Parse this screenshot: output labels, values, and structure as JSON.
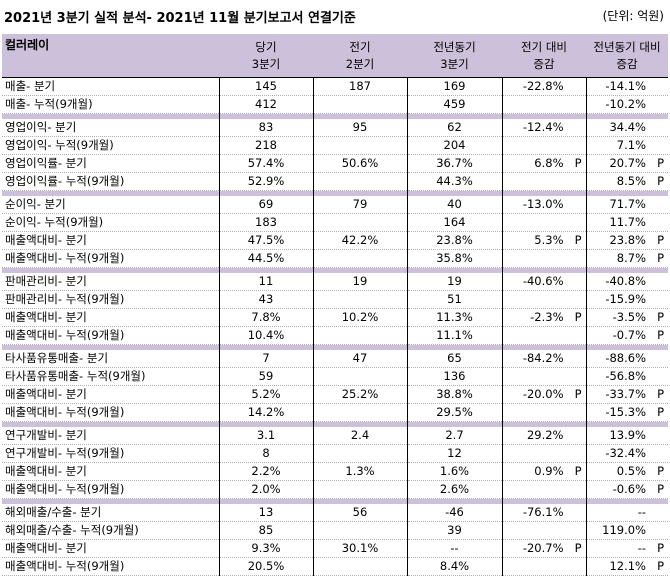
{
  "header": {
    "title": "2021년 3분기 실적 분석- 2021년 11월 분기보고서 연결기준",
    "unit": "(단위: 억원)"
  },
  "columns": [
    {
      "line1": "컬러레이",
      "line2": ""
    },
    {
      "line1": "당기",
      "line2": "3분기"
    },
    {
      "line1": "전기",
      "line2": "2분기"
    },
    {
      "line1": "전년동기",
      "line2": "3분기"
    },
    {
      "line1": "전기 대비",
      "line2": "증감"
    },
    {
      "line1": "전년동기 대비",
      "line2": "증감"
    }
  ],
  "groups": [
    {
      "rows": [
        {
          "label": "매출- 분기",
          "cur": "145",
          "prev": "187",
          "yoy": "169",
          "qchg": "-22.8%",
          "qp": "",
          "ychg": "-14.1%",
          "yp": ""
        },
        {
          "label": "매출- 누적(9개월)",
          "cur": "412",
          "prev": "",
          "yoy": "459",
          "qchg": "",
          "qp": "",
          "ychg": "-10.2%",
          "yp": ""
        }
      ]
    },
    {
      "rows": [
        {
          "label": "영업이익- 분기",
          "cur": "83",
          "prev": "95",
          "yoy": "62",
          "qchg": "-12.4%",
          "qp": "",
          "ychg": "34.4%",
          "yp": ""
        },
        {
          "label": "영업이익- 누적(9개월)",
          "cur": "218",
          "prev": "",
          "yoy": "204",
          "qchg": "",
          "qp": "",
          "ychg": "7.1%",
          "yp": ""
        },
        {
          "label": "영업이익률- 분기",
          "cur": "57.4%",
          "prev": "50.6%",
          "yoy": "36.7%",
          "qchg": "6.8%",
          "qp": "P",
          "ychg": "20.7%",
          "yp": "P"
        },
        {
          "label": "영업이익률- 누적(9개월)",
          "cur": "52.9%",
          "prev": "",
          "yoy": "44.3%",
          "qchg": "",
          "qp": "",
          "ychg": "8.5%",
          "yp": "P"
        }
      ]
    },
    {
      "rows": [
        {
          "label": "순이익- 분기",
          "cur": "69",
          "prev": "79",
          "yoy": "40",
          "qchg": "-13.0%",
          "qp": "",
          "ychg": "71.7%",
          "yp": ""
        },
        {
          "label": "순이익- 누적(9개월)",
          "cur": "183",
          "prev": "",
          "yoy": "164",
          "qchg": "",
          "qp": "",
          "ychg": "11.7%",
          "yp": ""
        },
        {
          "label": "매출액대비- 분기",
          "cur": "47.5%",
          "prev": "42.2%",
          "yoy": "23.8%",
          "qchg": "5.3%",
          "qp": "P",
          "ychg": "23.8%",
          "yp": "P"
        },
        {
          "label": "매출액대비- 누적(9개월)",
          "cur": "44.5%",
          "prev": "",
          "yoy": "35.8%",
          "qchg": "",
          "qp": "",
          "ychg": "8.7%",
          "yp": "P"
        }
      ]
    },
    {
      "rows": [
        {
          "label": "판매관리비- 분기",
          "cur": "11",
          "prev": "19",
          "yoy": "19",
          "qchg": "-40.6%",
          "qp": "",
          "ychg": "-40.8%",
          "yp": ""
        },
        {
          "label": "판매관리비- 누적(9개월)",
          "cur": "43",
          "prev": "",
          "yoy": "51",
          "qchg": "",
          "qp": "",
          "ychg": "-15.9%",
          "yp": ""
        },
        {
          "label": "매출액대비- 분기",
          "cur": "7.8%",
          "prev": "10.2%",
          "yoy": "11.3%",
          "qchg": "-2.3%",
          "qp": "P",
          "ychg": "-3.5%",
          "yp": "P"
        },
        {
          "label": "매출액대비- 누적(9개월)",
          "cur": "10.4%",
          "prev": "",
          "yoy": "11.1%",
          "qchg": "",
          "qp": "",
          "ychg": "-0.7%",
          "yp": "P"
        }
      ]
    },
    {
      "rows": [
        {
          "label": "타사품유통매출- 분기",
          "cur": "7",
          "prev": "47",
          "yoy": "65",
          "qchg": "-84.2%",
          "qp": "",
          "ychg": "-88.6%",
          "yp": ""
        },
        {
          "label": "타사품유통매출- 누적(9개월)",
          "cur": "59",
          "prev": "",
          "yoy": "136",
          "qchg": "",
          "qp": "",
          "ychg": "-56.8%",
          "yp": ""
        },
        {
          "label": "매출액대비- 분기",
          "cur": "5.2%",
          "prev": "25.2%",
          "yoy": "38.8%",
          "qchg": "-20.0%",
          "qp": "P",
          "ychg": "-33.7%",
          "yp": "P"
        },
        {
          "label": "매출액대비- 누적(9개월)",
          "cur": "14.2%",
          "prev": "",
          "yoy": "29.5%",
          "qchg": "",
          "qp": "",
          "ychg": "-15.3%",
          "yp": "P"
        }
      ]
    },
    {
      "rows": [
        {
          "label": "연구개발비- 분기",
          "cur": "3.1",
          "prev": "2.4",
          "yoy": "2.7",
          "qchg": "29.2%",
          "qp": "",
          "ychg": "13.9%",
          "yp": ""
        },
        {
          "label": "연구개발비- 누적(9개월)",
          "cur": "8",
          "prev": "",
          "yoy": "12",
          "qchg": "",
          "qp": "",
          "ychg": "-32.4%",
          "yp": ""
        },
        {
          "label": "매출액대비- 분기",
          "cur": "2.2%",
          "prev": "1.3%",
          "yoy": "1.6%",
          "qchg": "0.9%",
          "qp": "P",
          "ychg": "0.5%",
          "yp": "P"
        },
        {
          "label": "매출액대비- 누적(9개월)",
          "cur": "2.0%",
          "prev": "",
          "yoy": "2.6%",
          "qchg": "",
          "qp": "",
          "ychg": "-0.6%",
          "yp": "P"
        }
      ]
    },
    {
      "rows": [
        {
          "label": "해외매출/수출- 분기",
          "cur": "13",
          "prev": "56",
          "yoy": "-46",
          "qchg": "-76.1%",
          "qp": "",
          "ychg": "--",
          "yp": ""
        },
        {
          "label": "해외매출/수출- 누적(9개월)",
          "cur": "85",
          "prev": "",
          "yoy": "39",
          "qchg": "",
          "qp": "",
          "ychg": "119.0%",
          "yp": ""
        },
        {
          "label": "매출액대비- 분기",
          "cur": "9.3%",
          "prev": "30.1%",
          "yoy": "--",
          "qchg": "-20.7%",
          "qp": "P",
          "ychg": "--",
          "yp": "P"
        },
        {
          "label": "매출액대비- 누적(9개월)",
          "cur": "20.5%",
          "prev": "",
          "yoy": "8.4%",
          "qchg": "",
          "qp": "",
          "ychg": "12.1%",
          "yp": "P"
        }
      ]
    }
  ]
}
